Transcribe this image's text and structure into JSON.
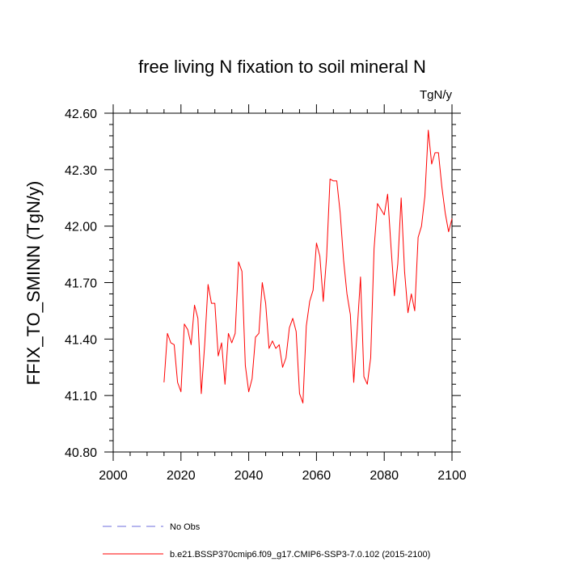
{
  "chart_data": {
    "type": "line",
    "title": "free living N fixation to soil mineral N",
    "units": "TgN/y",
    "ylabel": "FFIX_TO_SMINN  (TgN/y)",
    "xlabel": "",
    "xlim": [
      2000,
      2100
    ],
    "ylim": [
      40.8,
      42.6
    ],
    "x_ticks": [
      2000,
      2020,
      2040,
      2060,
      2080,
      2100
    ],
    "x_tick_labels": [
      "2000",
      "2020",
      "2040",
      "2060",
      "2080",
      "2100"
    ],
    "y_ticks": [
      40.8,
      41.1,
      41.4,
      41.7,
      42.0,
      42.3,
      42.6
    ],
    "y_tick_labels": [
      "40.80",
      "41.10",
      "41.40",
      "41.70",
      "42.00",
      "42.30",
      "42.60"
    ],
    "grid": false,
    "series": [
      {
        "name": "b.e21.BSSP370cmip6.f09_g17.CMIP6-SSP3-7.0.102 (2015-2100)",
        "color": "#ff0000",
        "x": [
          2015,
          2016,
          2017,
          2018,
          2019,
          2020,
          2021,
          2022,
          2023,
          2024,
          2025,
          2026,
          2027,
          2028,
          2029,
          2030,
          2031,
          2032,
          2033,
          2034,
          2035,
          2036,
          2037,
          2038,
          2039,
          2040,
          2041,
          2042,
          2043,
          2044,
          2045,
          2046,
          2047,
          2048,
          2049,
          2050,
          2051,
          2052,
          2053,
          2054,
          2055,
          2056,
          2057,
          2058,
          2059,
          2060,
          2061,
          2062,
          2063,
          2064,
          2065,
          2066,
          2067,
          2068,
          2069,
          2070,
          2071,
          2072,
          2073,
          2074,
          2075,
          2076,
          2077,
          2078,
          2079,
          2080,
          2081,
          2082,
          2083,
          2084,
          2085,
          2086,
          2087,
          2088,
          2089,
          2090,
          2091,
          2092,
          2093,
          2094,
          2095,
          2096,
          2097,
          2098,
          2099,
          2100
        ],
        "values": [
          41.17,
          41.43,
          41.38,
          41.37,
          41.17,
          41.12,
          41.48,
          41.45,
          41.37,
          41.58,
          41.51,
          41.11,
          41.37,
          41.69,
          41.59,
          41.59,
          41.31,
          41.38,
          41.16,
          41.43,
          41.38,
          41.43,
          41.81,
          41.76,
          41.26,
          41.12,
          41.19,
          41.41,
          41.43,
          41.7,
          41.59,
          41.35,
          41.39,
          41.35,
          41.37,
          41.25,
          41.3,
          41.46,
          41.51,
          41.44,
          41.11,
          41.06,
          41.47,
          41.6,
          41.66,
          41.91,
          41.84,
          41.6,
          41.84,
          42.25,
          42.24,
          42.24,
          42.07,
          41.82,
          41.64,
          41.53,
          41.17,
          41.44,
          41.73,
          41.2,
          41.16,
          41.3,
          41.88,
          42.12,
          42.09,
          42.06,
          42.17,
          41.89,
          41.63,
          41.8,
          42.15,
          41.76,
          41.54,
          41.64,
          41.55,
          41.94,
          42.0,
          42.16,
          42.51,
          42.33,
          42.39,
          42.39,
          42.21,
          42.07,
          41.97,
          42.04
        ]
      },
      {
        "name": "No Obs",
        "color": "#6d6dde",
        "x": [],
        "values": []
      }
    ],
    "legend": {
      "placement": "bottom",
      "entries": [
        "No Obs",
        "b.e21.BSSP370cmip6.f09_g17.CMIP6-SSP3-7.0.102 (2015-2100)"
      ]
    }
  }
}
